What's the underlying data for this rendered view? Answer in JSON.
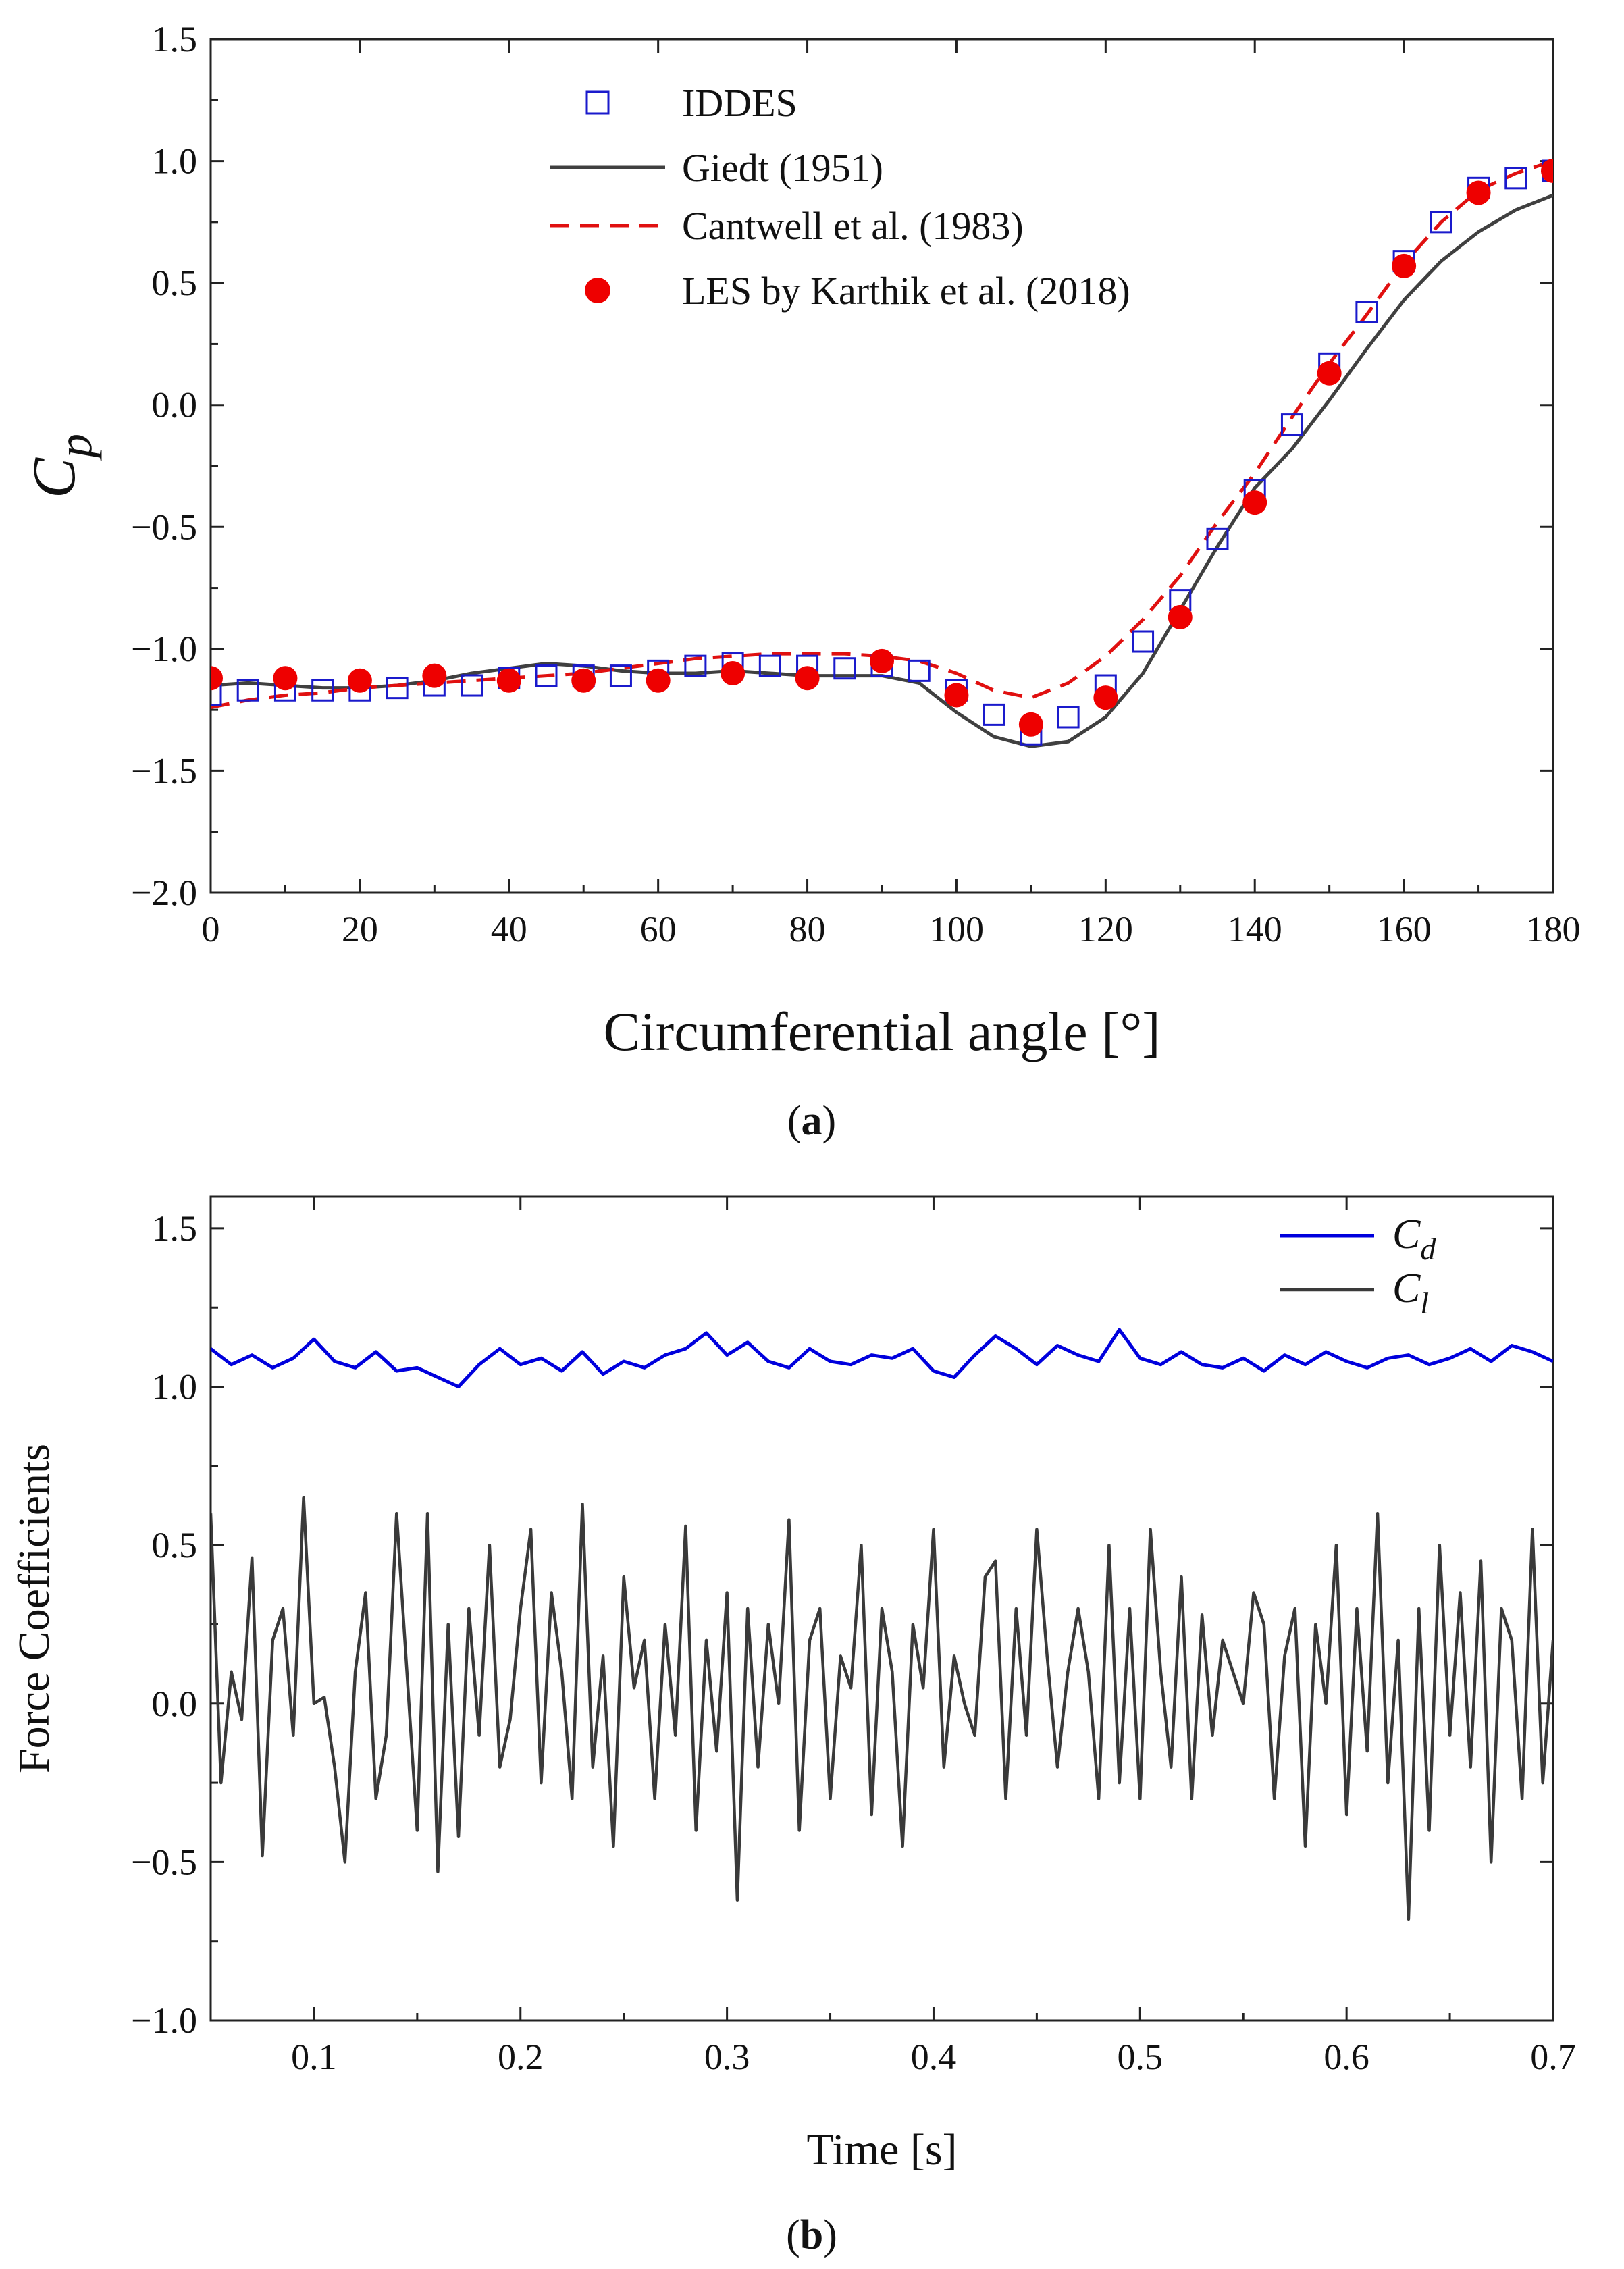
{
  "chart_data": [
    {
      "type": "line",
      "title": "",
      "panel_label": "a",
      "xlabel": "Circumferential angle [°]",
      "ylabel": "Cp",
      "ylabel_main": "C",
      "ylabel_sub": "p",
      "xlim": [
        0,
        180
      ],
      "ylim": [
        -2.0,
        1.5
      ],
      "x_ticks": [
        0,
        20,
        40,
        60,
        80,
        100,
        120,
        140,
        160,
        180
      ],
      "x_tick_labels": [
        "0",
        "20",
        "40",
        "60",
        "80",
        "100",
        "120",
        "140",
        "160",
        "180"
      ],
      "y_ticks": [
        -2.0,
        -1.5,
        -1.0,
        -0.5,
        0.0,
        0.5,
        1.0,
        1.5
      ],
      "y_tick_labels": [
        "−2.0",
        "−1.5",
        "−1.0",
        "−0.5",
        "0.0",
        "0.5",
        "1.0",
        "1.5"
      ],
      "grid": false,
      "legend_position": "top-center",
      "series": [
        {
          "name": "IDDES",
          "style": "open-square",
          "color": "#1a1acc",
          "x": [
            0,
            5,
            10,
            15,
            20,
            25,
            30,
            35,
            40,
            45,
            50,
            55,
            60,
            65,
            70,
            75,
            80,
            85,
            90,
            95,
            100,
            105,
            110,
            115,
            120,
            125,
            130,
            135,
            140,
            145,
            150,
            155,
            160,
            165,
            170,
            175,
            180
          ],
          "y": [
            -1.19,
            -1.17,
            -1.17,
            -1.17,
            -1.17,
            -1.16,
            -1.15,
            -1.15,
            -1.12,
            -1.11,
            -1.11,
            -1.11,
            -1.09,
            -1.07,
            -1.06,
            -1.07,
            -1.07,
            -1.08,
            -1.07,
            -1.09,
            -1.17,
            -1.27,
            -1.35,
            -1.28,
            -1.15,
            -0.97,
            -0.8,
            -0.55,
            -0.35,
            -0.08,
            0.17,
            0.38,
            0.59,
            0.75,
            0.89,
            0.93,
            0.96
          ]
        },
        {
          "name": "Giedt (1951)",
          "style": "solid-line",
          "color": "#404040",
          "x": [
            0,
            5,
            10,
            15,
            20,
            25,
            30,
            35,
            40,
            45,
            50,
            55,
            60,
            65,
            70,
            75,
            80,
            85,
            90,
            95,
            100,
            105,
            110,
            115,
            120,
            125,
            130,
            135,
            140,
            145,
            150,
            155,
            160,
            165,
            170,
            175,
            180
          ],
          "y": [
            -1.15,
            -1.14,
            -1.15,
            -1.16,
            -1.16,
            -1.15,
            -1.13,
            -1.1,
            -1.08,
            -1.06,
            -1.07,
            -1.09,
            -1.1,
            -1.1,
            -1.09,
            -1.1,
            -1.11,
            -1.11,
            -1.11,
            -1.14,
            -1.26,
            -1.36,
            -1.4,
            -1.38,
            -1.28,
            -1.1,
            -0.84,
            -0.58,
            -0.34,
            -0.18,
            0.02,
            0.23,
            0.43,
            0.59,
            0.71,
            0.8,
            0.86
          ]
        },
        {
          "name": "Cantwell et al. (1983)",
          "style": "dashed-line",
          "color": "#e01010",
          "x": [
            0,
            5,
            10,
            15,
            20,
            25,
            30,
            35,
            40,
            45,
            50,
            55,
            60,
            65,
            70,
            75,
            80,
            85,
            90,
            95,
            100,
            105,
            110,
            115,
            120,
            125,
            130,
            135,
            140,
            145,
            150,
            155,
            160,
            165,
            170,
            175,
            180
          ],
          "y": [
            -1.24,
            -1.21,
            -1.19,
            -1.18,
            -1.16,
            -1.15,
            -1.14,
            -1.13,
            -1.12,
            -1.11,
            -1.1,
            -1.08,
            -1.06,
            -1.04,
            -1.03,
            -1.02,
            -1.02,
            -1.02,
            -1.03,
            -1.05,
            -1.1,
            -1.17,
            -1.2,
            -1.14,
            -1.03,
            -0.88,
            -0.7,
            -0.48,
            -0.28,
            -0.05,
            0.17,
            0.37,
            0.58,
            0.75,
            0.88,
            0.95,
            1.0
          ]
        },
        {
          "name": "LES by Karthik et al. (2018)",
          "style": "filled-circle",
          "color": "#ee0000",
          "x": [
            0,
            10,
            20,
            30,
            40,
            50,
            60,
            70,
            80,
            90,
            100,
            110,
            120,
            130,
            140,
            150,
            160,
            170,
            180
          ],
          "y": [
            -1.12,
            -1.12,
            -1.13,
            -1.11,
            -1.13,
            -1.13,
            -1.13,
            -1.1,
            -1.12,
            -1.05,
            -1.19,
            -1.31,
            -1.2,
            -0.87,
            -0.4,
            0.13,
            0.57,
            0.87,
            0.96
          ]
        }
      ]
    },
    {
      "type": "line",
      "title": "",
      "panel_label": "b",
      "xlabel": "Time [s]",
      "ylabel": "Force Coefficients",
      "xlim": [
        0.05,
        0.7
      ],
      "ylim": [
        -1.0,
        1.6
      ],
      "x_ticks": [
        0.1,
        0.2,
        0.3,
        0.4,
        0.5,
        0.6,
        0.7
      ],
      "x_tick_labels": [
        "0.1",
        "0.2",
        "0.3",
        "0.4",
        "0.5",
        "0.6",
        "0.7"
      ],
      "y_ticks": [
        -1.0,
        -0.5,
        0.0,
        0.5,
        1.0,
        1.5
      ],
      "y_tick_labels": [
        "−1.0",
        "−0.5",
        "0.0",
        "0.5",
        "1.0",
        "1.5"
      ],
      "grid": false,
      "legend_position": "top-right",
      "series": [
        {
          "name": "Cd",
          "name_main": "C",
          "name_sub": "d",
          "style": "solid-line",
          "color": "#0000dd",
          "x": [
            0.05,
            0.06,
            0.07,
            0.08,
            0.09,
            0.1,
            0.11,
            0.12,
            0.13,
            0.14,
            0.15,
            0.16,
            0.17,
            0.18,
            0.19,
            0.2,
            0.21,
            0.22,
            0.23,
            0.24,
            0.25,
            0.26,
            0.27,
            0.28,
            0.29,
            0.3,
            0.31,
            0.32,
            0.33,
            0.34,
            0.35,
            0.36,
            0.37,
            0.38,
            0.39,
            0.4,
            0.41,
            0.42,
            0.43,
            0.44,
            0.45,
            0.46,
            0.47,
            0.48,
            0.49,
            0.5,
            0.51,
            0.52,
            0.53,
            0.54,
            0.55,
            0.56,
            0.57,
            0.58,
            0.59,
            0.6,
            0.61,
            0.62,
            0.63,
            0.64,
            0.65,
            0.66,
            0.67,
            0.68,
            0.69,
            0.7
          ],
          "y": [
            1.12,
            1.07,
            1.1,
            1.06,
            1.09,
            1.15,
            1.08,
            1.06,
            1.11,
            1.05,
            1.06,
            1.03,
            1.0,
            1.07,
            1.12,
            1.07,
            1.09,
            1.05,
            1.11,
            1.04,
            1.08,
            1.06,
            1.1,
            1.12,
            1.17,
            1.1,
            1.14,
            1.08,
            1.06,
            1.12,
            1.08,
            1.07,
            1.1,
            1.09,
            1.12,
            1.05,
            1.03,
            1.1,
            1.16,
            1.12,
            1.07,
            1.13,
            1.1,
            1.08,
            1.18,
            1.09,
            1.07,
            1.11,
            1.07,
            1.06,
            1.09,
            1.05,
            1.1,
            1.07,
            1.11,
            1.08,
            1.06,
            1.09,
            1.1,
            1.07,
            1.09,
            1.12,
            1.08,
            1.13,
            1.11,
            1.08
          ]
        },
        {
          "name": "Cl",
          "name_main": "C",
          "name_sub": "l",
          "style": "solid-line",
          "color": "#3a3a3a",
          "x": [
            0.05,
            0.055,
            0.06,
            0.065,
            0.07,
            0.075,
            0.08,
            0.085,
            0.09,
            0.095,
            0.1,
            0.105,
            0.11,
            0.115,
            0.12,
            0.125,
            0.13,
            0.135,
            0.14,
            0.145,
            0.15,
            0.155,
            0.16,
            0.165,
            0.17,
            0.175,
            0.18,
            0.185,
            0.19,
            0.195,
            0.2,
            0.205,
            0.21,
            0.215,
            0.22,
            0.225,
            0.23,
            0.235,
            0.24,
            0.245,
            0.25,
            0.255,
            0.26,
            0.265,
            0.27,
            0.275,
            0.28,
            0.285,
            0.29,
            0.295,
            0.3,
            0.305,
            0.31,
            0.315,
            0.32,
            0.325,
            0.33,
            0.335,
            0.34,
            0.345,
            0.35,
            0.355,
            0.36,
            0.365,
            0.37,
            0.375,
            0.38,
            0.385,
            0.39,
            0.395,
            0.4,
            0.405,
            0.41,
            0.415,
            0.42,
            0.425,
            0.43,
            0.435,
            0.44,
            0.445,
            0.45,
            0.455,
            0.46,
            0.465,
            0.47,
            0.475,
            0.48,
            0.485,
            0.49,
            0.495,
            0.5,
            0.505,
            0.51,
            0.515,
            0.52,
            0.525,
            0.53,
            0.535,
            0.54,
            0.545,
            0.55,
            0.555,
            0.56,
            0.565,
            0.57,
            0.575,
            0.58,
            0.585,
            0.59,
            0.595,
            0.6,
            0.605,
            0.61,
            0.615,
            0.62,
            0.625,
            0.63,
            0.635,
            0.64,
            0.645,
            0.65,
            0.655,
            0.66,
            0.665,
            0.67,
            0.675,
            0.68,
            0.685,
            0.69,
            0.695,
            0.7
          ],
          "y": [
            0.6,
            -0.25,
            0.1,
            -0.05,
            0.46,
            -0.48,
            0.2,
            0.3,
            -0.1,
            0.65,
            0.0,
            0.02,
            -0.2,
            -0.5,
            0.1,
            0.35,
            -0.3,
            -0.1,
            0.6,
            0.1,
            -0.4,
            0.6,
            -0.53,
            0.25,
            -0.42,
            0.3,
            -0.1,
            0.5,
            -0.2,
            -0.05,
            0.3,
            0.55,
            -0.25,
            0.35,
            0.1,
            -0.3,
            0.63,
            -0.2,
            0.15,
            -0.45,
            0.4,
            0.05,
            0.2,
            -0.3,
            0.25,
            -0.1,
            0.56,
            -0.4,
            0.2,
            -0.15,
            0.35,
            -0.62,
            0.3,
            -0.2,
            0.25,
            0.0,
            0.58,
            -0.4,
            0.2,
            0.3,
            -0.3,
            0.15,
            0.05,
            0.5,
            -0.35,
            0.3,
            0.1,
            -0.45,
            0.25,
            0.05,
            0.55,
            -0.2,
            0.15,
            0.0,
            -0.1,
            0.4,
            0.45,
            -0.3,
            0.3,
            -0.1,
            0.55,
            0.15,
            -0.2,
            0.1,
            0.3,
            0.1,
            -0.3,
            0.5,
            -0.25,
            0.3,
            -0.3,
            0.55,
            0.1,
            -0.2,
            0.4,
            -0.3,
            0.28,
            -0.1,
            0.2,
            0.1,
            0.0,
            0.35,
            0.25,
            -0.3,
            0.15,
            0.3,
            -0.45,
            0.25,
            0.0,
            0.5,
            -0.35,
            0.3,
            -0.15,
            0.6,
            -0.25,
            0.2,
            -0.68,
            0.3,
            -0.4,
            0.5,
            -0.1,
            0.35,
            -0.2,
            0.45,
            -0.5,
            0.3,
            0.2,
            -0.3,
            0.55,
            -0.25,
            0.2
          ]
        }
      ]
    }
  ]
}
